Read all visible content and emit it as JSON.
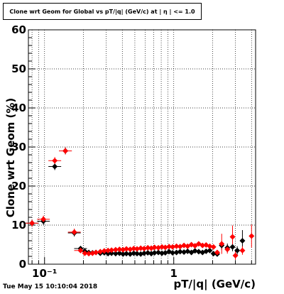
{
  "timestamp": "Tue May 15 10:10:04 2018",
  "chart_data": {
    "type": "scatter",
    "title": "Clone wrt Geom for Global vs pT/|q| (GeV/c) at | η | <= 1.0",
    "xlabel": "pT/|q| (GeV/c)",
    "ylabel": "Clone wrt Geom (%)",
    "xscale": "log",
    "xlim": [
      0.075,
      4.3
    ],
    "ylim": [
      0,
      60
    ],
    "x_tick_labels": [
      "10⁻¹",
      "1"
    ],
    "y_tick_labels": [
      "0",
      "10",
      "20",
      "30",
      "40",
      "50",
      "60"
    ],
    "grid": true,
    "series": [
      {
        "color": "#000000",
        "marker": "diamond",
        "points": [
          [
            0.08,
            10.5
          ],
          [
            0.098,
            11.0
          ],
          [
            0.12,
            25.0
          ],
          [
            0.145,
            29.0
          ],
          [
            0.17,
            8.0
          ],
          [
            0.19,
            4.0
          ],
          [
            0.205,
            3.3
          ],
          [
            0.22,
            3.0
          ],
          [
            0.235,
            2.9
          ],
          [
            0.25,
            3.0
          ],
          [
            0.27,
            2.8
          ],
          [
            0.29,
            2.9
          ],
          [
            0.31,
            2.7
          ],
          [
            0.33,
            2.8
          ],
          [
            0.355,
            2.7
          ],
          [
            0.38,
            2.8
          ],
          [
            0.405,
            2.6
          ],
          [
            0.43,
            2.7
          ],
          [
            0.46,
            2.6
          ],
          [
            0.49,
            2.8
          ],
          [
            0.52,
            2.7
          ],
          [
            0.555,
            2.6
          ],
          [
            0.59,
            2.8
          ],
          [
            0.63,
            2.9
          ],
          [
            0.67,
            2.7
          ],
          [
            0.71,
            2.9
          ],
          [
            0.76,
            3.0
          ],
          [
            0.81,
            2.8
          ],
          [
            0.86,
            2.9
          ],
          [
            0.92,
            3.2
          ],
          [
            0.98,
            2.9
          ],
          [
            1.05,
            3.0
          ],
          [
            1.12,
            3.2
          ],
          [
            1.2,
            3.1
          ],
          [
            1.28,
            3.3
          ],
          [
            1.37,
            3.0
          ],
          [
            1.46,
            3.4
          ],
          [
            1.56,
            3.2
          ],
          [
            1.67,
            3.0
          ],
          [
            1.78,
            3.3
          ],
          [
            1.9,
            3.5
          ],
          [
            2.03,
            2.7
          ],
          [
            2.17,
            2.6
          ],
          [
            2.35,
            4.8
          ],
          [
            2.6,
            4.2
          ],
          [
            2.85,
            4.4
          ],
          [
            3.1,
            3.5
          ],
          [
            3.4,
            6.0
          ]
        ]
      },
      {
        "color": "#ff0000",
        "marker": "diamond",
        "points": [
          [
            0.08,
            10.5
          ],
          [
            0.098,
            11.5
          ],
          [
            0.12,
            26.5
          ],
          [
            0.145,
            29.0
          ],
          [
            0.17,
            8.2
          ],
          [
            0.19,
            3.5
          ],
          [
            0.205,
            2.8
          ],
          [
            0.22,
            2.7
          ],
          [
            0.235,
            2.8
          ],
          [
            0.25,
            3.0
          ],
          [
            0.27,
            3.2
          ],
          [
            0.29,
            3.4
          ],
          [
            0.31,
            3.5
          ],
          [
            0.33,
            3.6
          ],
          [
            0.355,
            3.7
          ],
          [
            0.38,
            3.8
          ],
          [
            0.405,
            3.7
          ],
          [
            0.43,
            3.9
          ],
          [
            0.46,
            3.8
          ],
          [
            0.49,
            4.0
          ],
          [
            0.52,
            3.9
          ],
          [
            0.555,
            4.1
          ],
          [
            0.59,
            4.0
          ],
          [
            0.63,
            4.2
          ],
          [
            0.67,
            4.1
          ],
          [
            0.71,
            4.3
          ],
          [
            0.76,
            4.2
          ],
          [
            0.81,
            4.4
          ],
          [
            0.86,
            4.3
          ],
          [
            0.92,
            4.5
          ],
          [
            0.98,
            4.4
          ],
          [
            1.05,
            4.6
          ],
          [
            1.12,
            4.5
          ],
          [
            1.2,
            4.8
          ],
          [
            1.28,
            4.6
          ],
          [
            1.37,
            5.0
          ],
          [
            1.46,
            4.7
          ],
          [
            1.56,
            5.2
          ],
          [
            1.67,
            4.8
          ],
          [
            1.78,
            4.9
          ],
          [
            1.9,
            4.6
          ],
          [
            2.03,
            4.4
          ],
          [
            2.17,
            3.0
          ],
          [
            2.35,
            5.2
          ],
          [
            2.6,
            3.8
          ],
          [
            2.85,
            7.0
          ],
          [
            3.0,
            2.2
          ],
          [
            3.4,
            3.5
          ],
          [
            4.0,
            7.2
          ]
        ]
      }
    ]
  }
}
